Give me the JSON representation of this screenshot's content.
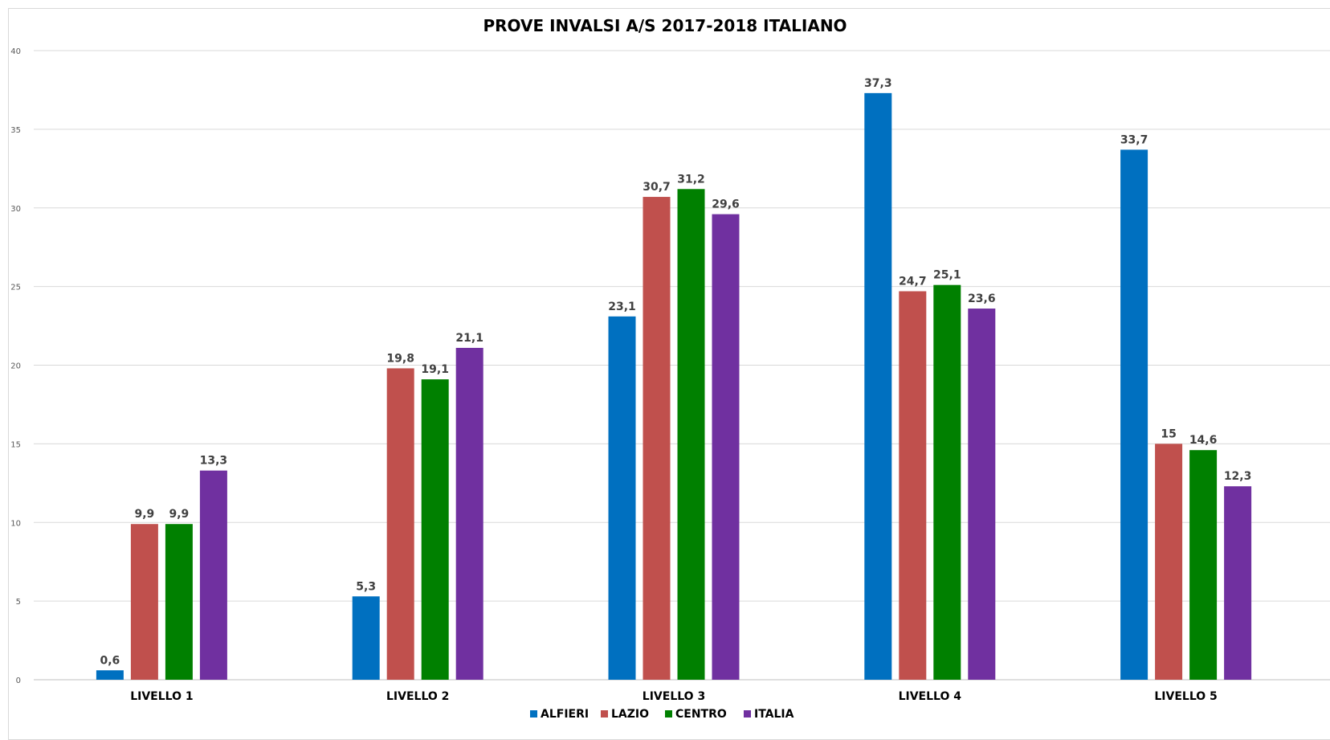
{
  "chart_data": {
    "type": "bar",
    "title": "PROVE INVALSI A/S 2017-2018  ITALIANO",
    "categories": [
      "LIVELLO 1",
      "LIVELLO 2",
      "LIVELLO 3",
      "LIVELLO 4",
      "LIVELLO 5"
    ],
    "series": [
      {
        "name": "ALFIERI",
        "color": "#0070C0",
        "values": [
          0.6,
          5.3,
          23.1,
          37.3,
          33.7
        ],
        "labels": [
          "0,6",
          "5,3",
          "23,1",
          "37,3",
          "33,7"
        ]
      },
      {
        "name": "LAZIO",
        "color": "#C0504D",
        "values": [
          9.9,
          19.8,
          30.7,
          24.7,
          15
        ],
        "labels": [
          "9,9",
          "19,8",
          "30,7",
          "24,7",
          "15"
        ]
      },
      {
        "name": "CENTRO",
        "color": "#008000",
        "values": [
          9.9,
          19.1,
          31.2,
          25.1,
          14.6
        ],
        "labels": [
          "9,9",
          "19,1",
          "31,2",
          "25,1",
          "14,6"
        ]
      },
      {
        "name": "ITALIA",
        "color": "#7030A0",
        "values": [
          13.3,
          21.1,
          29.6,
          23.6,
          12.3
        ],
        "labels": [
          "13,3",
          "21,1",
          "29,6",
          "23,6",
          "12,3"
        ]
      }
    ],
    "ylim": [
      0,
      40
    ],
    "yticks": [
      0,
      5,
      10,
      15,
      20,
      25,
      30,
      35,
      40
    ],
    "grid": true,
    "legend": "bottom",
    "xlabel": "",
    "ylabel": ""
  }
}
